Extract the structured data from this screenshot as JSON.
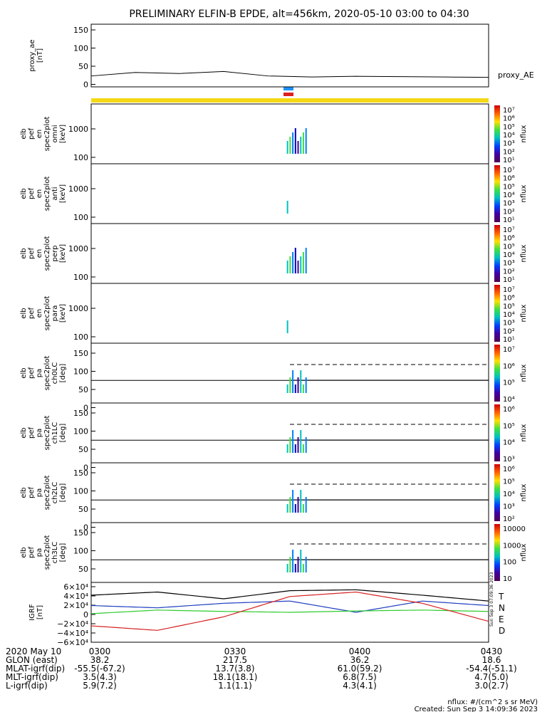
{
  "title": "PRELIMINARY ELFIN-B EPDE, alt=456km, 2020-05-10 03:00 to 04:30",
  "panels": [
    {
      "ylabel": [
        "proxy_ae",
        "[nT]"
      ],
      "right_label": "proxy_AE",
      "yticks": [
        "150",
        "100",
        "50",
        "0"
      ]
    },
    {
      "ylabel": [
        "elb",
        "pef",
        "en",
        "spec2plot",
        "omni",
        "[keV]"
      ],
      "yticks": [
        "1000",
        "100"
      ],
      "cb_label": "nflux",
      "cb_ticks": [
        "10⁷",
        "10⁶",
        "10⁵",
        "10⁴",
        "10³",
        "10²",
        "10¹"
      ]
    },
    {
      "ylabel": [
        "elb",
        "pef",
        "en",
        "spec2plot",
        "anti",
        "[keV]"
      ],
      "yticks": [
        "1000",
        "100"
      ],
      "cb_label": "nflux",
      "cb_ticks": [
        "10⁷",
        "10⁶",
        "10⁵",
        "10⁴",
        "10³",
        "10²",
        "10¹"
      ]
    },
    {
      "ylabel": [
        "elb",
        "pef",
        "en",
        "spec2plot",
        "perp",
        "[keV]"
      ],
      "yticks": [
        "1000",
        "100"
      ],
      "cb_label": "nflux",
      "cb_ticks": [
        "10⁷",
        "10⁶",
        "10⁵",
        "10⁴",
        "10³",
        "10²",
        "10¹"
      ]
    },
    {
      "ylabel": [
        "elb",
        "pef",
        "en",
        "spec2plot",
        "para",
        "[keV]"
      ],
      "yticks": [
        "1000",
        "100"
      ],
      "cb_label": "nflux",
      "cb_ticks": [
        "10⁷",
        "10⁶",
        "10⁵",
        "10⁴",
        "10³",
        "10²",
        "10¹"
      ]
    },
    {
      "ylabel": [
        "elb",
        "pef",
        "pa",
        "spec2plot",
        "ch0LC",
        "[deg]"
      ],
      "yticks": [
        "150",
        "100",
        "50",
        "0"
      ],
      "cb_label": "nflux",
      "cb_ticks": [
        "10⁷",
        "10⁶",
        "10⁵",
        "10⁴"
      ]
    },
    {
      "ylabel": [
        "elb",
        "pef",
        "pa",
        "spec2plot",
        "ch1LC",
        "[deg]"
      ],
      "yticks": [
        "150",
        "100",
        "50",
        "0"
      ],
      "cb_label": "nflux",
      "cb_ticks": [
        "10⁶",
        "10⁵",
        "10⁴",
        "10³"
      ]
    },
    {
      "ylabel": [
        "elb",
        "pef",
        "pa",
        "spec2plot",
        "ch2LC",
        "[deg]"
      ],
      "yticks": [
        "150",
        "100",
        "50",
        "0"
      ],
      "cb_label": "nflux",
      "cb_ticks": [
        "10⁶",
        "10⁵",
        "10⁴",
        "10³",
        "10²"
      ]
    },
    {
      "ylabel": [
        "elb",
        "pef",
        "pa",
        "spec2plot",
        "ch3LC",
        "[deg]"
      ],
      "yticks": [
        "150",
        "100",
        "50"
      ],
      "cb_label": "nflux",
      "cb_ticks": [
        "10000",
        "1000",
        "100",
        "10"
      ]
    },
    {
      "ylabel": [
        "IGRF",
        "[nT]"
      ],
      "yticks": [
        "6×10⁴",
        "4×10⁴",
        "2×10⁴",
        "0",
        "−2×10⁴",
        "−4×10⁴",
        "−6×10⁴"
      ],
      "components": [
        "T",
        "N",
        "E",
        "D"
      ]
    }
  ],
  "colors": {
    "T": "#000000",
    "N": "#1f3fbf",
    "E": "#2ecc2e",
    "D": "#d62020",
    "bar": "#f5d816",
    "blue_marker": "#1e90ff",
    "red_marker": "#e02020"
  },
  "xaxis_rows": [
    [
      "2020 May 10",
      "0300",
      "0330",
      "0400",
      "0430"
    ],
    [
      "GLON (east)",
      "38.2",
      "217.5",
      "36.2",
      "18.6"
    ],
    [
      "MLAT-igrf(dip)",
      "-55.5(-67.2)",
      "13.7(3.8)",
      "61.0(59.2)",
      "-54.4(-51.1)"
    ],
    [
      "MLT-igrf(dip)",
      "3.5(4.3)",
      "18.1(18.1)",
      "6.8(7.5)",
      "4.7(5.0)"
    ],
    [
      "L-igrf(dip)",
      "5.9(7.2)",
      "1.1(1.1)",
      "4.3(4.1)",
      "3.0(2.7)"
    ]
  ],
  "footer": [
    "nflux: #/(cm^2 s sr MeV)",
    "Created: Sun Sep  3 14:09:36 2023"
  ],
  "side_stamp": "Sun Sep  3 07:09:36 2023",
  "chart_data": [
    {
      "type": "line",
      "title": "proxy_AE",
      "x": [
        "0300",
        "0310",
        "0320",
        "0330",
        "0340",
        "0350",
        "0400",
        "0410",
        "0420",
        "0430"
      ],
      "y": [
        15,
        25,
        22,
        28,
        15,
        12,
        14,
        13,
        12,
        11
      ],
      "ylim": [
        0,
        160
      ]
    },
    {
      "type": "line",
      "title": "IGRF",
      "x": [
        "0300",
        "0315",
        "0330",
        "0345",
        "0400",
        "0415",
        "0430"
      ],
      "series": [
        {
          "name": "T",
          "values": [
            38000,
            45000,
            30000,
            48000,
            50000,
            38000,
            25000
          ]
        },
        {
          "name": "N",
          "values": [
            15000,
            10000,
            20000,
            25000,
            0,
            25000,
            15000
          ]
        },
        {
          "name": "E",
          "values": [
            -3000,
            5000,
            2000,
            0,
            3000,
            5000,
            2000
          ]
        },
        {
          "name": "D",
          "values": [
            -30000,
            -40000,
            -10000,
            35000,
            45000,
            20000,
            -20000
          ]
        }
      ],
      "ylim": [
        -60000,
        60000
      ]
    }
  ]
}
